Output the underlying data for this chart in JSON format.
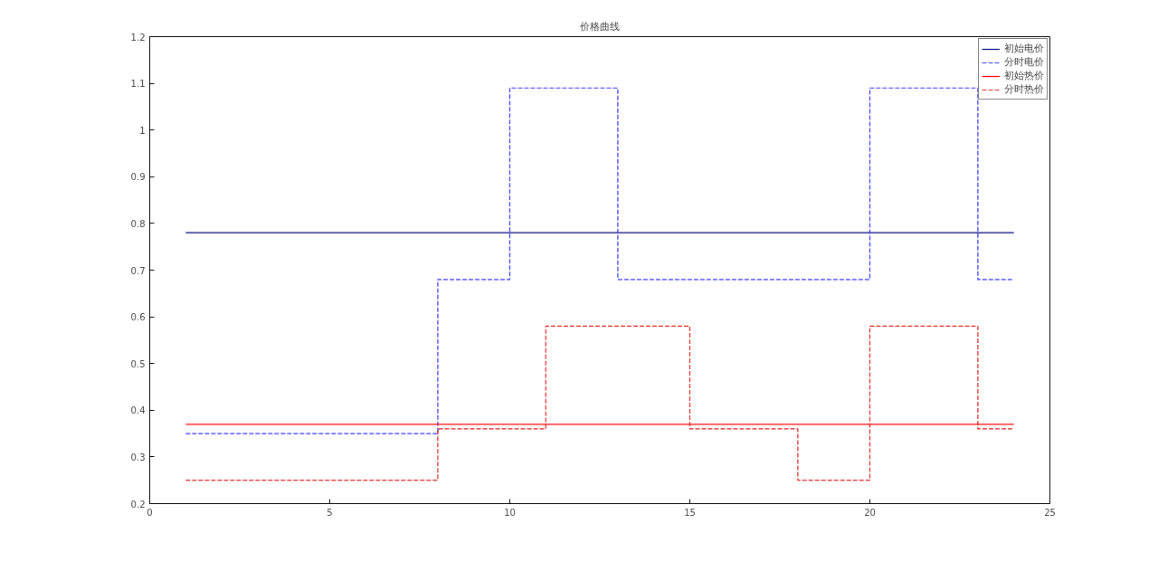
{
  "chart_data": {
    "type": "step",
    "title": "价格曲线",
    "x": [
      1,
      2,
      3,
      4,
      5,
      6,
      7,
      8,
      9,
      10,
      11,
      12,
      13,
      14,
      15,
      16,
      17,
      18,
      19,
      20,
      21,
      22,
      23,
      24
    ],
    "series": [
      {
        "name": "初始电价",
        "color": "#000080",
        "line_style": "solid",
        "values": [
          0.78,
          0.78,
          0.78,
          0.78,
          0.78,
          0.78,
          0.78,
          0.78,
          0.78,
          0.78,
          0.78,
          0.78,
          0.78,
          0.78,
          0.78,
          0.78,
          0.78,
          0.78,
          0.78,
          0.78,
          0.78,
          0.78,
          0.78,
          0.78
        ]
      },
      {
        "name": "分时电价",
        "color": "#3333ff",
        "line_style": "dashed",
        "values": [
          0.35,
          0.35,
          0.35,
          0.35,
          0.35,
          0.35,
          0.35,
          0.68,
          0.68,
          1.09,
          1.09,
          1.09,
          0.68,
          0.68,
          0.68,
          0.68,
          0.68,
          0.68,
          0.68,
          1.09,
          1.09,
          1.09,
          0.68,
          0.68
        ]
      },
      {
        "name": "初始热价",
        "color": "#ff0000",
        "line_style": "solid",
        "values": [
          0.37,
          0.37,
          0.37,
          0.37,
          0.37,
          0.37,
          0.37,
          0.37,
          0.37,
          0.37,
          0.37,
          0.37,
          0.37,
          0.37,
          0.37,
          0.37,
          0.37,
          0.37,
          0.37,
          0.37,
          0.37,
          0.37,
          0.37,
          0.37
        ]
      },
      {
        "name": "分时热价",
        "color": "#dd2222",
        "line_style": "dashed",
        "values": [
          0.25,
          0.25,
          0.25,
          0.25,
          0.25,
          0.25,
          0.25,
          0.36,
          0.36,
          0.36,
          0.58,
          0.58,
          0.58,
          0.58,
          0.36,
          0.36,
          0.36,
          0.25,
          0.25,
          0.58,
          0.58,
          0.58,
          0.36,
          0.36
        ]
      }
    ],
    "xlim": [
      0,
      25
    ],
    "xticks": [
      0,
      5,
      10,
      15,
      20,
      25
    ],
    "ylim": [
      0.2,
      1.2
    ],
    "yticks": [
      0.2,
      0.3,
      0.4,
      0.5,
      0.6,
      0.7,
      0.8,
      0.9,
      1,
      1.1,
      1.2
    ],
    "grid": false,
    "legend": "top right"
  }
}
